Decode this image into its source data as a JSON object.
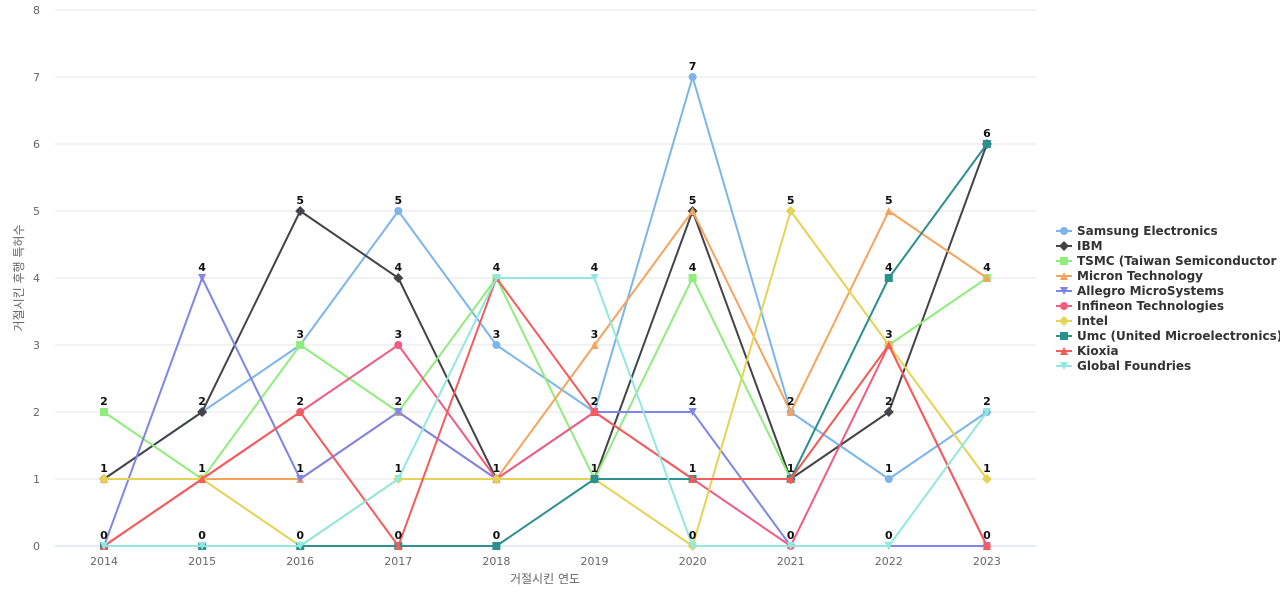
{
  "chart_data": {
    "type": "line",
    "xlabel": "거절시킨 연도",
    "ylabel": "거절시킨 후행 특허수",
    "ylim": [
      0,
      8
    ],
    "yticks": [
      0,
      1,
      2,
      3,
      4,
      5,
      6,
      7,
      8
    ],
    "grid": true,
    "legend_position": "right",
    "categories": [
      "2014",
      "2015",
      "2016",
      "2017",
      "2018",
      "2019",
      "2020",
      "2021",
      "2022",
      "2023"
    ],
    "series": [
      {
        "name": "Samsung Electronics",
        "color": "#7cb5ec",
        "marker": "circle",
        "values": [
          1,
          2,
          3,
          5,
          3,
          2,
          7,
          2,
          1,
          2
        ]
      },
      {
        "name": "IBM",
        "color": "#434348",
        "marker": "diamond",
        "values": [
          1,
          2,
          5,
          4,
          1,
          1,
          5,
          1,
          2,
          6
        ]
      },
      {
        "name": "TSMC (Taiwan Semiconductor ...",
        "color": "#90ed7d",
        "marker": "square",
        "values": [
          2,
          1,
          3,
          2,
          4,
          1,
          4,
          1,
          3,
          4
        ]
      },
      {
        "name": "Micron Technology",
        "color": "#f7a35c",
        "marker": "triangle",
        "values": [
          1,
          1,
          1,
          2,
          1,
          3,
          5,
          2,
          5,
          4
        ]
      },
      {
        "name": "Allegro MicroSystems",
        "color": "#8085e9",
        "marker": "triangle-down",
        "values": [
          0,
          4,
          1,
          2,
          1,
          2,
          2,
          0,
          0,
          0
        ]
      },
      {
        "name": "Infineon Technologies",
        "color": "#f15c80",
        "marker": "circle",
        "values": [
          0,
          1,
          2,
          3,
          1,
          2,
          1,
          0,
          3,
          0
        ]
      },
      {
        "name": "Intel",
        "color": "#e4d354",
        "marker": "diamond",
        "values": [
          1,
          1,
          0,
          1,
          1,
          1,
          0,
          5,
          3,
          1
        ]
      },
      {
        "name": "Umc (United Microelectronics)",
        "color": "#2b908f",
        "marker": "square",
        "values": [
          0,
          0,
          0,
          0,
          0,
          1,
          1,
          1,
          4,
          6
        ]
      },
      {
        "name": "Kioxia",
        "color": "#f45b5b",
        "marker": "triangle",
        "values": [
          0,
          1,
          2,
          0,
          4,
          2,
          1,
          1,
          3,
          0
        ]
      },
      {
        "name": "Global Foundries",
        "color": "#91e8e1",
        "marker": "triangle-down",
        "values": [
          0,
          0,
          0,
          1,
          4,
          4,
          0,
          0,
          0,
          2
        ]
      }
    ],
    "data_labels": [
      {
        "category": "2014",
        "value": 2,
        "text": "2"
      },
      {
        "category": "2014",
        "value": 1,
        "text": "1"
      },
      {
        "category": "2014",
        "value": 0,
        "text": "0"
      },
      {
        "category": "2015",
        "value": 4,
        "text": "4"
      },
      {
        "category": "2015",
        "value": 2,
        "text": "2"
      },
      {
        "category": "2015",
        "value": 1,
        "text": "1"
      },
      {
        "category": "2015",
        "value": 0,
        "text": "0"
      },
      {
        "category": "2016",
        "value": 5,
        "text": "5"
      },
      {
        "category": "2016",
        "value": 3,
        "text": "3"
      },
      {
        "category": "2016",
        "value": 2,
        "text": "2"
      },
      {
        "category": "2016",
        "value": 1,
        "text": "1"
      },
      {
        "category": "2016",
        "value": 0,
        "text": "0"
      },
      {
        "category": "2017",
        "value": 5,
        "text": "5"
      },
      {
        "category": "2017",
        "value": 4,
        "text": "4"
      },
      {
        "category": "2017",
        "value": 3,
        "text": "3"
      },
      {
        "category": "2017",
        "value": 2,
        "text": "2"
      },
      {
        "category": "2017",
        "value": 1,
        "text": "1"
      },
      {
        "category": "2017",
        "value": 0,
        "text": "0"
      },
      {
        "category": "2018",
        "value": 4,
        "text": "4"
      },
      {
        "category": "2018",
        "value": 3,
        "text": "3"
      },
      {
        "category": "2018",
        "value": 1,
        "text": "1"
      },
      {
        "category": "2018",
        "value": 0,
        "text": "0"
      },
      {
        "category": "2019",
        "value": 4,
        "text": "4"
      },
      {
        "category": "2019",
        "value": 3,
        "text": "3"
      },
      {
        "category": "2019",
        "value": 2,
        "text": "2"
      },
      {
        "category": "2019",
        "value": 1,
        "text": "1"
      },
      {
        "category": "2020",
        "value": 7,
        "text": "7"
      },
      {
        "category": "2020",
        "value": 5,
        "text": "5"
      },
      {
        "category": "2020",
        "value": 4,
        "text": "4"
      },
      {
        "category": "2020",
        "value": 2,
        "text": "2"
      },
      {
        "category": "2020",
        "value": 1,
        "text": "1"
      },
      {
        "category": "2020",
        "value": 0,
        "text": "0"
      },
      {
        "category": "2021",
        "value": 5,
        "text": "5"
      },
      {
        "category": "2021",
        "value": 2,
        "text": "2"
      },
      {
        "category": "2021",
        "value": 1,
        "text": "1"
      },
      {
        "category": "2021",
        "value": 0,
        "text": "0"
      },
      {
        "category": "2022",
        "value": 5,
        "text": "5"
      },
      {
        "category": "2022",
        "value": 4,
        "text": "4"
      },
      {
        "category": "2022",
        "value": 3,
        "text": "3"
      },
      {
        "category": "2022",
        "value": 2,
        "text": "2"
      },
      {
        "category": "2022",
        "value": 1,
        "text": "1"
      },
      {
        "category": "2022",
        "value": 0,
        "text": "0"
      },
      {
        "category": "2023",
        "value": 6,
        "text": "6"
      },
      {
        "category": "2023",
        "value": 4,
        "text": "4"
      },
      {
        "category": "2023",
        "value": 2,
        "text": "2"
      },
      {
        "category": "2023",
        "value": 1,
        "text": "1"
      },
      {
        "category": "2023",
        "value": 0,
        "text": "0"
      }
    ]
  }
}
